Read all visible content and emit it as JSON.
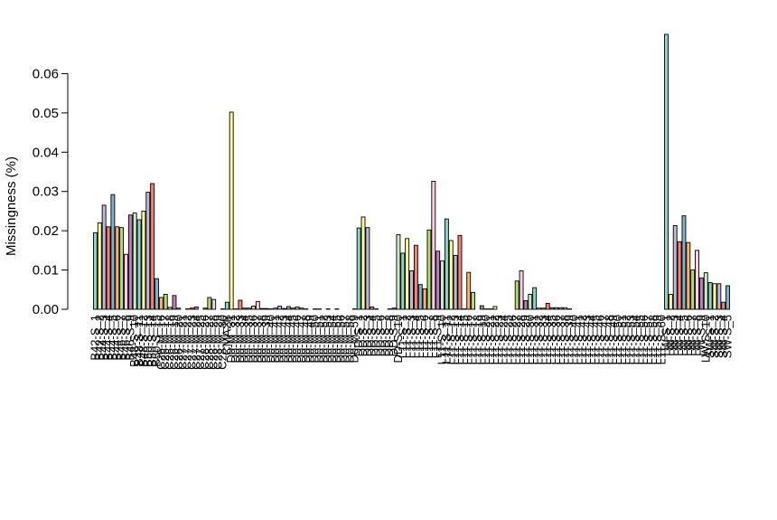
{
  "chart_data": {
    "type": "bar",
    "ylabel": "Missingness (%)",
    "xlabel": "",
    "title": "",
    "ylim": [
      0,
      0.07
    ],
    "yticks": [
      0.0,
      0.01,
      0.02,
      0.03,
      0.04,
      0.05,
      0.06
    ],
    "ytick_labels": [
      "0.00",
      "0.01",
      "0.02",
      "0.03",
      "0.04",
      "0.05",
      "0.06"
    ],
    "grid": false,
    "legend": "none",
    "palette": [
      "#8dd3c7",
      "#ffff99",
      "#bebada",
      "#fb8072",
      "#80b1d3",
      "#fdb462",
      "#b3de69",
      "#fccde5",
      "#bc80bd",
      "#ccebc5"
    ],
    "categories": [
      "B42-S_1",
      "B42-S_2",
      "B44-S_3",
      "B44-S_4",
      "B44-S_5",
      "B44-S_6",
      "B46-S_7",
      "B46-S_8",
      "B46-S_9",
      "B48-S_10",
      "B48-S_11",
      "B48-S_12",
      "B50-S_13",
      "B50-S_14",
      "B50-S_15",
      "C26-M_16",
      "C26-M_17",
      "C26-M_18",
      "C26-M_19",
      "C26-M_20",
      "C27-M_21",
      "C27-M_22",
      "C27-M_23",
      "C27-M_24",
      "C27-M_25",
      "C28-M_26",
      "C28-M_27",
      "C28-M_28",
      "C28-M_29",
      "C28-M_30",
      "CMA2B",
      "D0-M_31",
      "D0-M_32",
      "D0-M_33",
      "D0-M_34",
      "D0-M_35",
      "D0-M_36",
      "D0-M_37",
      "D0-M_38",
      "D0-M_39",
      "D0-M_40",
      "D0-M_41",
      "D0-M_42",
      "D0-M_43",
      "D0-M_44",
      "D0-M_45",
      "D0-M_46",
      "D0-M_47",
      "D0-M_48",
      "D0-M_49",
      "D0-M_50",
      "D0-M_51",
      "D0-M_52",
      "D0-M_53",
      "D0-M_54",
      "D0-M_55",
      "D0-M_56",
      "D0-M_57",
      "D0-M_58",
      "D0-M_59",
      "DD-S_1",
      "DD-S_2",
      "DD-S_3",
      "DD-S_4",
      "DD-S_5",
      "DD-S_6",
      "DD-S_7",
      "DD-S_8",
      "DD-S_9",
      "DD-S_10",
      "L11-S_1",
      "L11-S_2",
      "L11-S_3",
      "L11-S_4",
      "L11-S_5",
      "L11-S_6",
      "L11-S_7",
      "L11-S_8",
      "L11-S_9",
      "L11-S_10",
      "L11-S_11",
      "L11-S_12",
      "L11-S_13",
      "L11-S_14",
      "L11-S_15",
      "L11-S_16",
      "L11-S_17",
      "L11-S_18",
      "L11-S_19",
      "L11-S_20",
      "L11-S_21",
      "L11-S_22",
      "L11-S_23",
      "L11-S_24",
      "L11-S_25",
      "L11-S_26",
      "L11-S_27",
      "L11-S_28",
      "L11-S_29",
      "L11-S_30",
      "L11-S_31",
      "L11-S_32",
      "L11-S_33",
      "L11-S_34",
      "L11-S_35",
      "L11-S_36",
      "L11-S_37",
      "L11-S_38",
      "L11-S_39",
      "L11-S_40",
      "L11-S_41",
      "L11-S_42",
      "L11-S_43",
      "L11-S_44",
      "L11-S_45",
      "L11-S_46",
      "L11-S_47",
      "L11-S_48",
      "L11-S_49",
      "L11-S_50",
      "L11-S_51",
      "L11-S_52",
      "L11-S_53",
      "L11-S_54",
      "L11-S_55",
      "L11-S_56",
      "L11-S_57",
      "L11-S_58",
      "L11-S_59",
      "L11-S_60",
      "LW-S_1",
      "LW-S_2",
      "LW-S_3",
      "LW-S_4",
      "LW-S_5",
      "LW-S_6",
      "LW-S_7",
      "LW-S_8",
      "LW-S_9",
      "LW-S_10",
      "SW-S_1",
      "SW-S_2",
      "SW-S_3",
      "SW-S_4",
      "SW-S_5"
    ],
    "values": [
      0.0195,
      0.022,
      0.0265,
      0.021,
      0.0292,
      0.021,
      0.0208,
      0.014,
      0.024,
      0.0245,
      0.0228,
      0.025,
      0.0298,
      0.032,
      0.0078,
      0.003,
      0.0038,
      0.0005,
      0.0035,
      0.0003,
      0.0,
      0.0001,
      0.0003,
      0.0006,
      0.0,
      0.0003,
      0.003,
      0.0025,
      0.0,
      0.0001,
      0.0018,
      0.0502,
      0.0001,
      0.0023,
      0.0003,
      0.0003,
      0.0008,
      0.002,
      0.0002,
      0.0002,
      0.0001,
      0.0003,
      0.0008,
      0.0002,
      0.0007,
      0.0003,
      0.0006,
      0.0003,
      0.0001,
      0.0,
      0.0001,
      0.0001,
      0.0,
      0.0001,
      0.0,
      0.0001,
      0.0,
      0.0,
      0.0,
      0.0001,
      0.0207,
      0.0235,
      0.0208,
      0.0006,
      0.0001,
      0.0,
      0.0,
      0.0001,
      0.0003,
      0.019,
      0.0143,
      0.018,
      0.0098,
      0.0163,
      0.0063,
      0.0052,
      0.0202,
      0.0326,
      0.0148,
      0.0123,
      0.023,
      0.0175,
      0.0137,
      0.0188,
      0.0001,
      0.0094,
      0.0043,
      0.0,
      0.0009,
      0.0001,
      0.0001,
      0.0007,
      0.0,
      0.0,
      0.0,
      0.0,
      0.0072,
      0.0098,
      0.0022,
      0.0038,
      0.0055,
      0.0003,
      0.0003,
      0.0015,
      0.0004,
      0.0004,
      0.0004,
      0.0004,
      0.0001,
      0.0,
      0.0,
      0.0,
      0.0,
      0.0,
      0.0,
      0.0,
      0.0,
      0.0,
      0.0,
      0.0,
      0.0,
      0.0,
      0.0,
      0.0,
      0.0,
      0.0,
      0.0,
      0.0,
      0.0,
      0.0,
      0.07,
      0.0038,
      0.0213,
      0.0172,
      0.0238,
      0.017,
      0.01,
      0.015,
      0.008,
      0.0093,
      0.0068,
      0.0065,
      0.0065,
      0.0018,
      0.006
    ]
  }
}
